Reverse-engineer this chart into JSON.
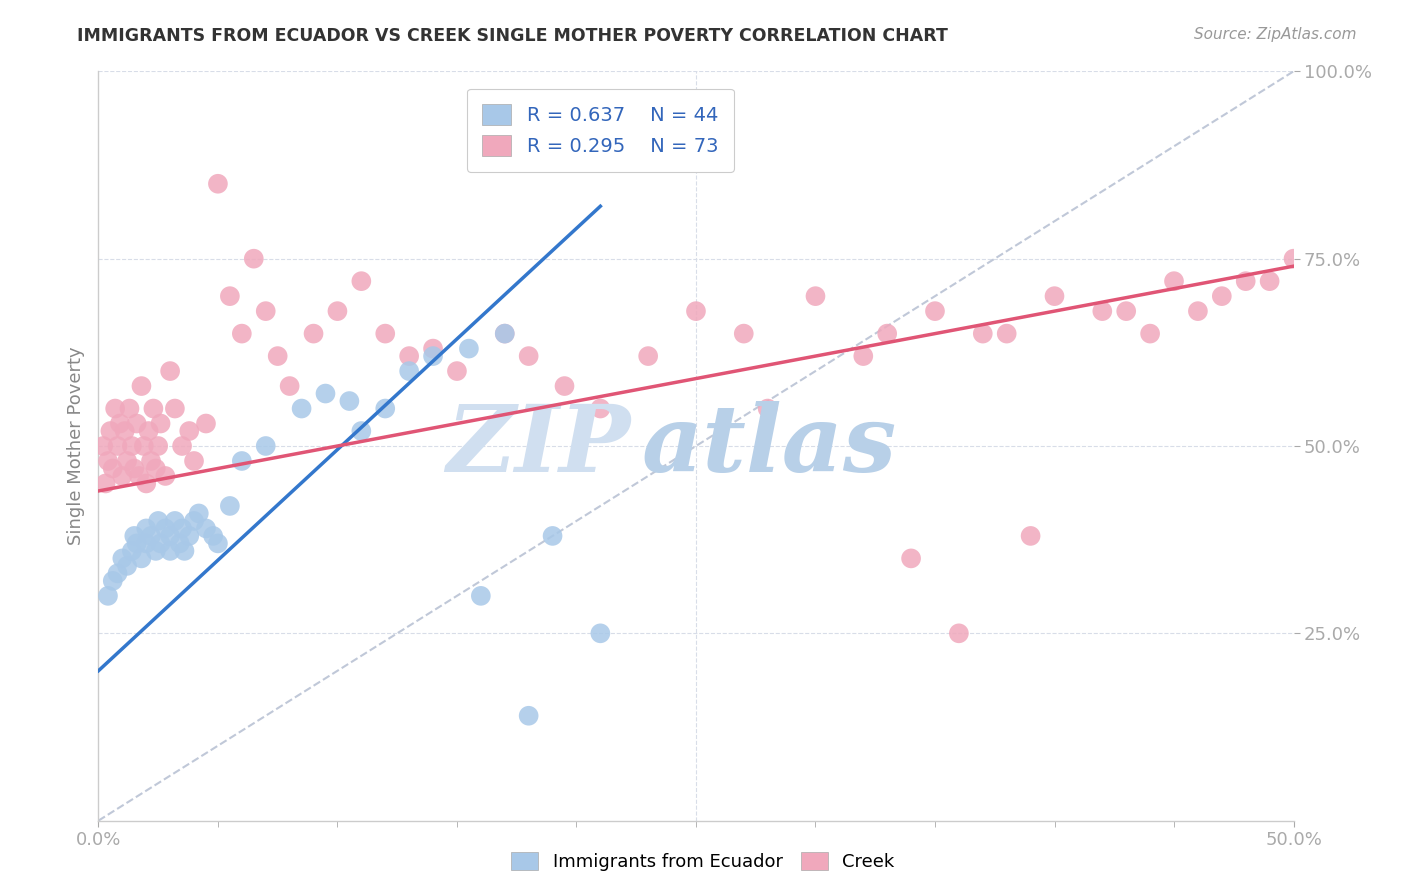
{
  "title": "IMMIGRANTS FROM ECUADOR VS CREEK SINGLE MOTHER POVERTY CORRELATION CHART",
  "source_text": "Source: ZipAtlas.com",
  "ylabel": "Single Mother Poverty",
  "legend_blue_label": "Immigrants from Ecuador",
  "legend_pink_label": "Creek",
  "legend_blue_R": "R = 0.637",
  "legend_pink_R": "R = 0.295",
  "legend_blue_N": "N = 44",
  "legend_pink_N": "N = 73",
  "watermark_zip": "ZIP",
  "watermark_atlas": "atlas",
  "blue_scatter_color": "#a8c8e8",
  "pink_scatter_color": "#f0a8bc",
  "blue_line_color": "#3377cc",
  "pink_line_color": "#e05575",
  "ref_line_color": "#c0c8d8",
  "background_color": "#ffffff",
  "axis_label_color": "#4499cc",
  "grid_color": "#d8dde8",
  "ylabel_color": "#888888",
  "title_color": "#333333",
  "source_color": "#999999",
  "blue_dots_x": [
    0.4,
    0.6,
    0.8,
    1.0,
    1.2,
    1.4,
    1.5,
    1.6,
    1.8,
    2.0,
    2.0,
    2.2,
    2.4,
    2.5,
    2.6,
    2.8,
    3.0,
    3.0,
    3.2,
    3.4,
    3.5,
    3.6,
    3.8,
    4.0,
    4.2,
    4.5,
    4.8,
    5.0,
    5.5,
    6.0,
    7.0,
    8.5,
    9.5,
    10.5,
    12.0,
    14.0,
    15.5,
    17.0,
    19.0,
    21.0,
    11.0,
    13.0,
    16.0,
    18.0
  ],
  "blue_dots_y": [
    30,
    32,
    33,
    35,
    34,
    36,
    38,
    37,
    35,
    37,
    39,
    38,
    36,
    40,
    37,
    39,
    36,
    38,
    40,
    37,
    39,
    36,
    38,
    40,
    41,
    39,
    38,
    37,
    42,
    48,
    50,
    55,
    57,
    56,
    55,
    62,
    63,
    65,
    38,
    25,
    52,
    60,
    30,
    14
  ],
  "pink_dots_x": [
    0.2,
    0.3,
    0.4,
    0.5,
    0.6,
    0.7,
    0.8,
    0.9,
    1.0,
    1.1,
    1.2,
    1.3,
    1.4,
    1.5,
    1.6,
    1.7,
    1.8,
    1.9,
    2.0,
    2.1,
    2.2,
    2.3,
    2.4,
    2.5,
    2.6,
    2.8,
    3.0,
    3.2,
    3.5,
    3.8,
    4.0,
    4.5,
    5.0,
    5.5,
    6.0,
    6.5,
    7.0,
    7.5,
    8.0,
    9.0,
    10.0,
    11.0,
    12.0,
    13.0,
    14.0,
    15.0,
    17.0,
    18.0,
    19.5,
    21.0,
    23.0,
    25.0,
    27.0,
    30.0,
    33.0,
    35.0,
    38.0,
    40.0,
    43.0,
    45.0,
    47.0,
    49.0,
    50.0,
    28.0,
    32.0,
    37.0,
    42.0,
    44.0,
    46.0,
    48.0,
    36.0,
    34.0,
    39.0
  ],
  "pink_dots_y": [
    50,
    45,
    48,
    52,
    47,
    55,
    50,
    53,
    46,
    52,
    48,
    55,
    50,
    47,
    53,
    46,
    58,
    50,
    45,
    52,
    48,
    55,
    47,
    50,
    53,
    46,
    60,
    55,
    50,
    52,
    48,
    53,
    85,
    70,
    65,
    75,
    68,
    62,
    58,
    65,
    68,
    72,
    65,
    62,
    63,
    60,
    65,
    62,
    58,
    55,
    62,
    68,
    65,
    70,
    65,
    68,
    65,
    70,
    68,
    72,
    70,
    72,
    75,
    55,
    62,
    65,
    68,
    65,
    68,
    72,
    25,
    35,
    38
  ],
  "xlim": [
    0,
    50
  ],
  "ylim": [
    0,
    100
  ],
  "blue_line_x0": 0,
  "blue_line_y0": 20,
  "blue_line_x1": 21,
  "blue_line_y1": 82,
  "pink_line_x0": 0,
  "pink_line_y0": 44,
  "pink_line_x1": 50,
  "pink_line_y1": 74
}
